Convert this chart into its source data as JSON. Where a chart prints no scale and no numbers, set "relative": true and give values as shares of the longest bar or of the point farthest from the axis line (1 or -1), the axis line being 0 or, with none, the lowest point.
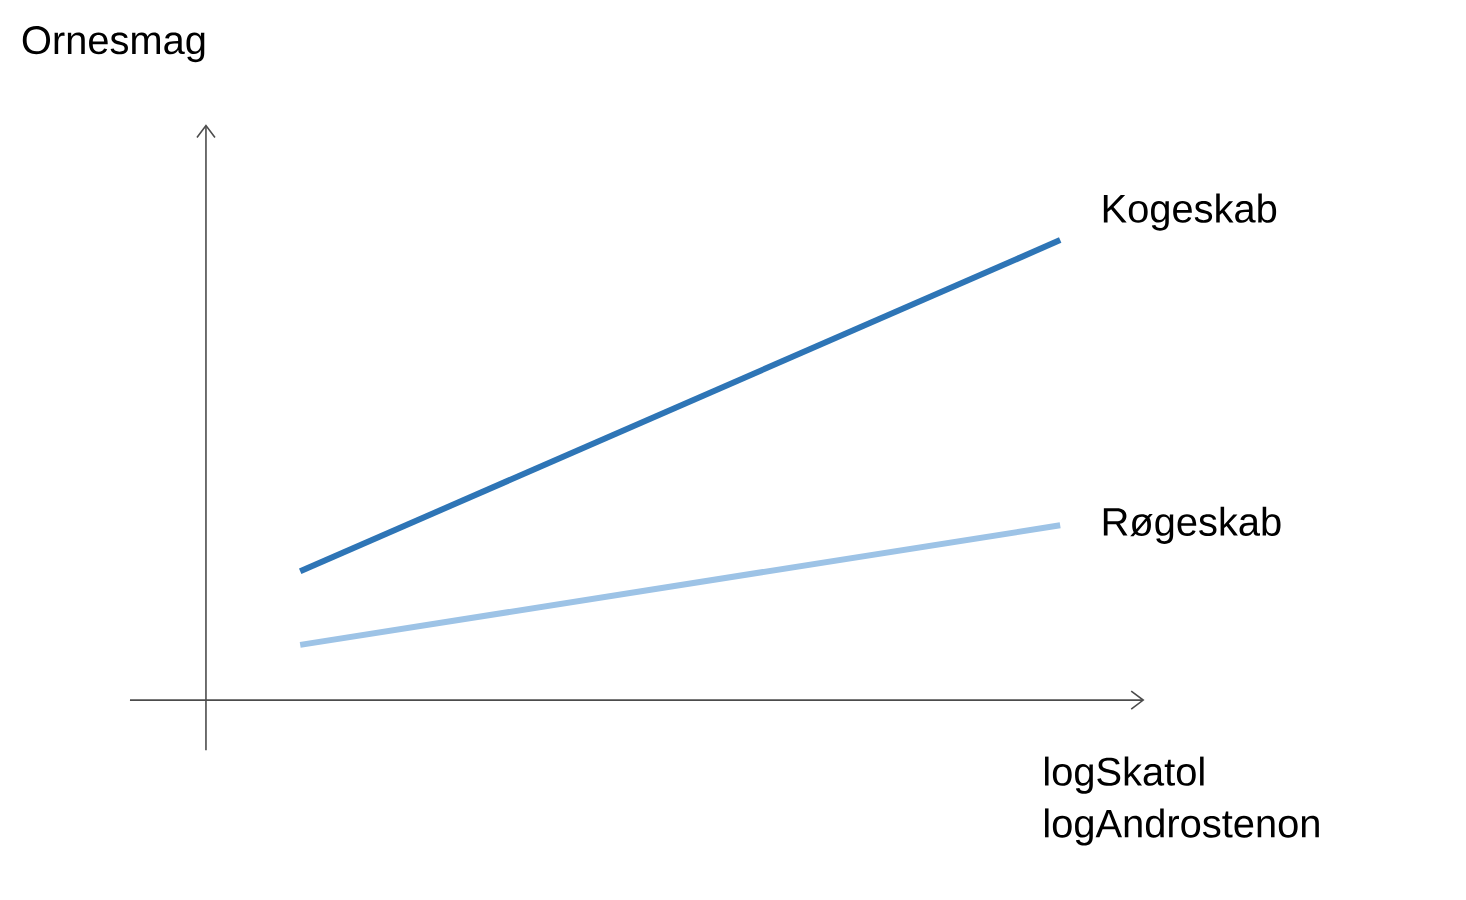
{
  "chart_data": {
    "type": "line",
    "relative": true,
    "ylabel": "Ornesmag",
    "xlabel": "logSkatol logAndrostenon",
    "categories": [
      null,
      null
    ],
    "series": [
      {
        "name": "Kogeskab",
        "color": "#2e75b6",
        "values": [
          0.28,
          1
        ]
      },
      {
        "name": "Røgeskab",
        "color": "#9dc3e6",
        "values": [
          0.12,
          0.38
        ]
      }
    ]
  }
}
